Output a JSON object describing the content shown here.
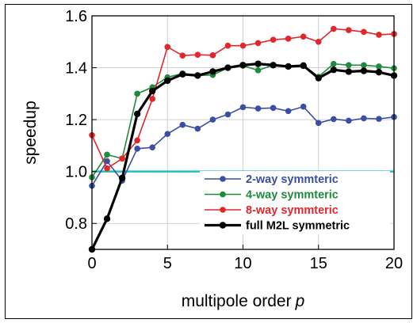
{
  "chart_data": {
    "type": "line",
    "xlabel": "multipole order",
    "xlabel_var": "p",
    "ylabel": "speedup",
    "xlim": [
      0,
      20
    ],
    "ylim": [
      0.7,
      1.6
    ],
    "x_ticks": [
      "0",
      "5",
      "10",
      "15",
      "20"
    ],
    "y_ticks": [
      "0.8",
      "1.0",
      "1.2",
      "1.4",
      "1.6"
    ],
    "x_tick_values": [
      0,
      5,
      10,
      15,
      20
    ],
    "y_tick_values": [
      0.8,
      1.0,
      1.2,
      1.4,
      1.6
    ],
    "baseline": {
      "y": 1.0,
      "color": "#22bfc8"
    },
    "legend_position": "bottom-right",
    "x": [
      0,
      1,
      2,
      3,
      4,
      5,
      6,
      7,
      8,
      9,
      10,
      11,
      12,
      13,
      14,
      15,
      16,
      17,
      18,
      19,
      20
    ],
    "series": [
      {
        "name": "2-way symmteric",
        "color": "#3a4fa3",
        "values": [
          0.945,
          1.04,
          0.965,
          1.088,
          1.093,
          1.145,
          1.18,
          1.165,
          1.2,
          1.22,
          1.248,
          1.243,
          1.245,
          1.233,
          1.25,
          1.187,
          1.202,
          1.196,
          1.205,
          1.203,
          1.21
        ]
      },
      {
        "name": "4-way symmteric",
        "color": "#1e8a3c",
        "values": [
          0.978,
          1.065,
          1.05,
          1.3,
          1.325,
          1.363,
          1.378,
          1.37,
          1.372,
          1.4,
          1.408,
          1.39,
          1.41,
          1.405,
          1.41,
          1.365,
          1.415,
          1.41,
          1.41,
          1.405,
          1.398
        ]
      },
      {
        "name": "8-way symmteric",
        "color": "#e3262b",
        "values": [
          1.14,
          1.012,
          1.05,
          1.12,
          1.28,
          1.48,
          1.447,
          1.45,
          1.448,
          1.485,
          1.485,
          1.495,
          1.508,
          1.512,
          1.52,
          1.5,
          1.55,
          1.545,
          1.538,
          1.527,
          1.53
        ]
      },
      {
        "name": "full M2L symmetric",
        "color": "#000000",
        "values": [
          0.7,
          0.818,
          0.975,
          1.222,
          1.31,
          1.35,
          1.375,
          1.37,
          1.385,
          1.4,
          1.41,
          1.415,
          1.41,
          1.405,
          1.408,
          1.36,
          1.392,
          1.385,
          1.388,
          1.383,
          1.37
        ]
      }
    ]
  }
}
